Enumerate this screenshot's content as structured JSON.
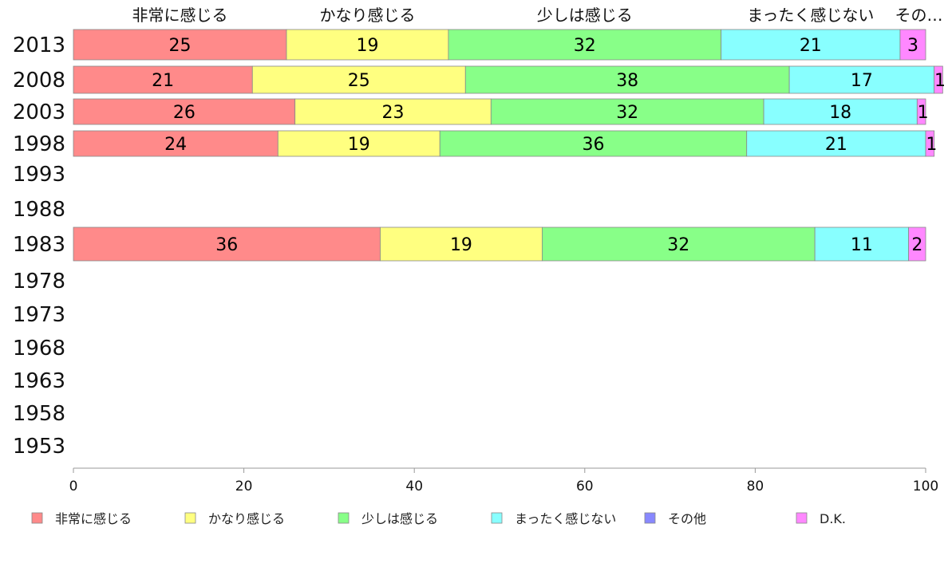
{
  "chart_data": {
    "type": "bar",
    "orientation": "horizontal",
    "stacked": true,
    "categories": [
      "2013",
      "2008",
      "2003",
      "1998",
      "1993",
      "1988",
      "1983",
      "1978",
      "1973",
      "1968",
      "1963",
      "1958",
      "1953"
    ],
    "series": [
      {
        "name": "非常に感じる",
        "color": "#ff8a8a",
        "values": [
          25,
          21,
          26,
          24,
          null,
          null,
          36,
          null,
          null,
          null,
          null,
          null,
          null
        ]
      },
      {
        "name": "かなり感じる",
        "color": "#ffff80",
        "values": [
          19,
          25,
          23,
          19,
          null,
          null,
          19,
          null,
          null,
          null,
          null,
          null,
          null
        ]
      },
      {
        "name": "少しは感じる",
        "color": "#88ff88",
        "values": [
          32,
          38,
          32,
          36,
          null,
          null,
          32,
          null,
          null,
          null,
          null,
          null,
          null
        ]
      },
      {
        "name": "まったく感じない",
        "color": "#88ffff",
        "values": [
          21,
          17,
          18,
          21,
          null,
          null,
          11,
          null,
          null,
          null,
          null,
          null,
          null
        ]
      },
      {
        "name": "その他",
        "color": "#8888ff",
        "values": [
          0,
          0,
          0,
          0,
          null,
          null,
          0,
          null,
          null,
          null,
          null,
          null,
          null
        ]
      },
      {
        "name": "D.K.",
        "color": "#ff88ff",
        "values": [
          3,
          1,
          1,
          1,
          null,
          null,
          2,
          null,
          null,
          null,
          null,
          null,
          null
        ]
      }
    ],
    "top_labels": [
      "非常に感じる",
      "かなり感じる",
      "少しは感じる",
      "まったく感じない",
      "その…"
    ],
    "xlim": [
      0,
      100
    ],
    "xticks": [
      0,
      20,
      40,
      60,
      80,
      100
    ],
    "title": "",
    "xlabel": "",
    "ylabel": "",
    "grid": false,
    "legend_position": "bottom"
  }
}
